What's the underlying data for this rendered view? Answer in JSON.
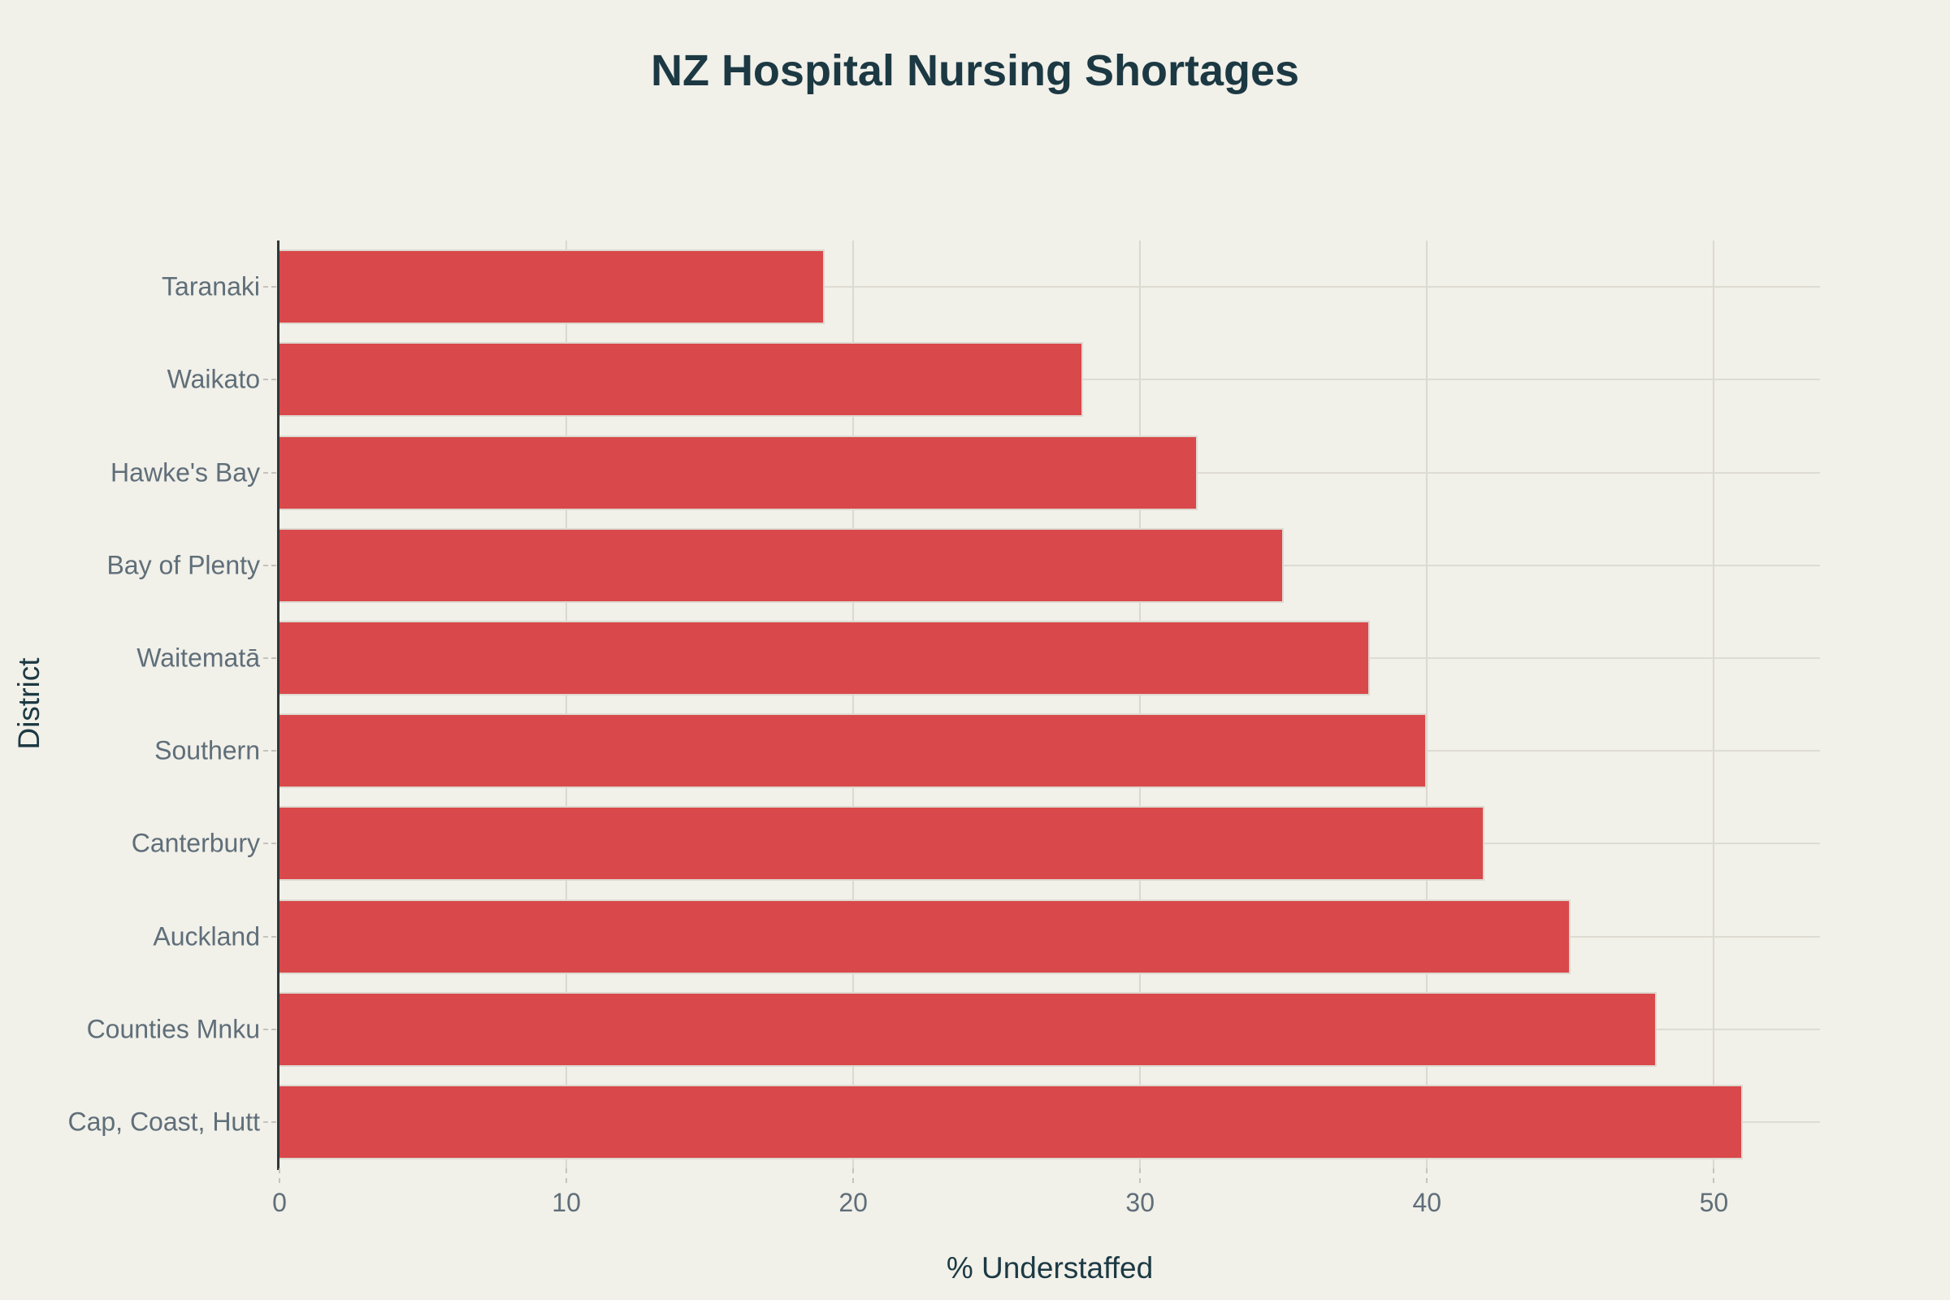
{
  "chart_data": {
    "type": "bar",
    "orientation": "horizontal",
    "title": "NZ Hospital Nursing Shortages",
    "xlabel": "% Understaffed",
    "ylabel": "District",
    "categories": [
      "Taranaki",
      "Waikato",
      "Hawke's Bay",
      "Bay of Plenty",
      "Waitematā",
      "Southern",
      "Canterbury",
      "Auckland",
      "Counties Mnku",
      "Cap, Coast, Hutt"
    ],
    "values": [
      19,
      28,
      32,
      35,
      38,
      40,
      42,
      45,
      48,
      51
    ],
    "xticks": [
      0,
      10,
      20,
      30,
      40,
      50
    ],
    "xlim": [
      0,
      53.7
    ],
    "grid": true,
    "legend": "none",
    "bar_color": "#d9484a",
    "background_color": "#f1f0e9",
    "title_color": "#1c3943",
    "tick_label_color": "#5f6e79"
  }
}
